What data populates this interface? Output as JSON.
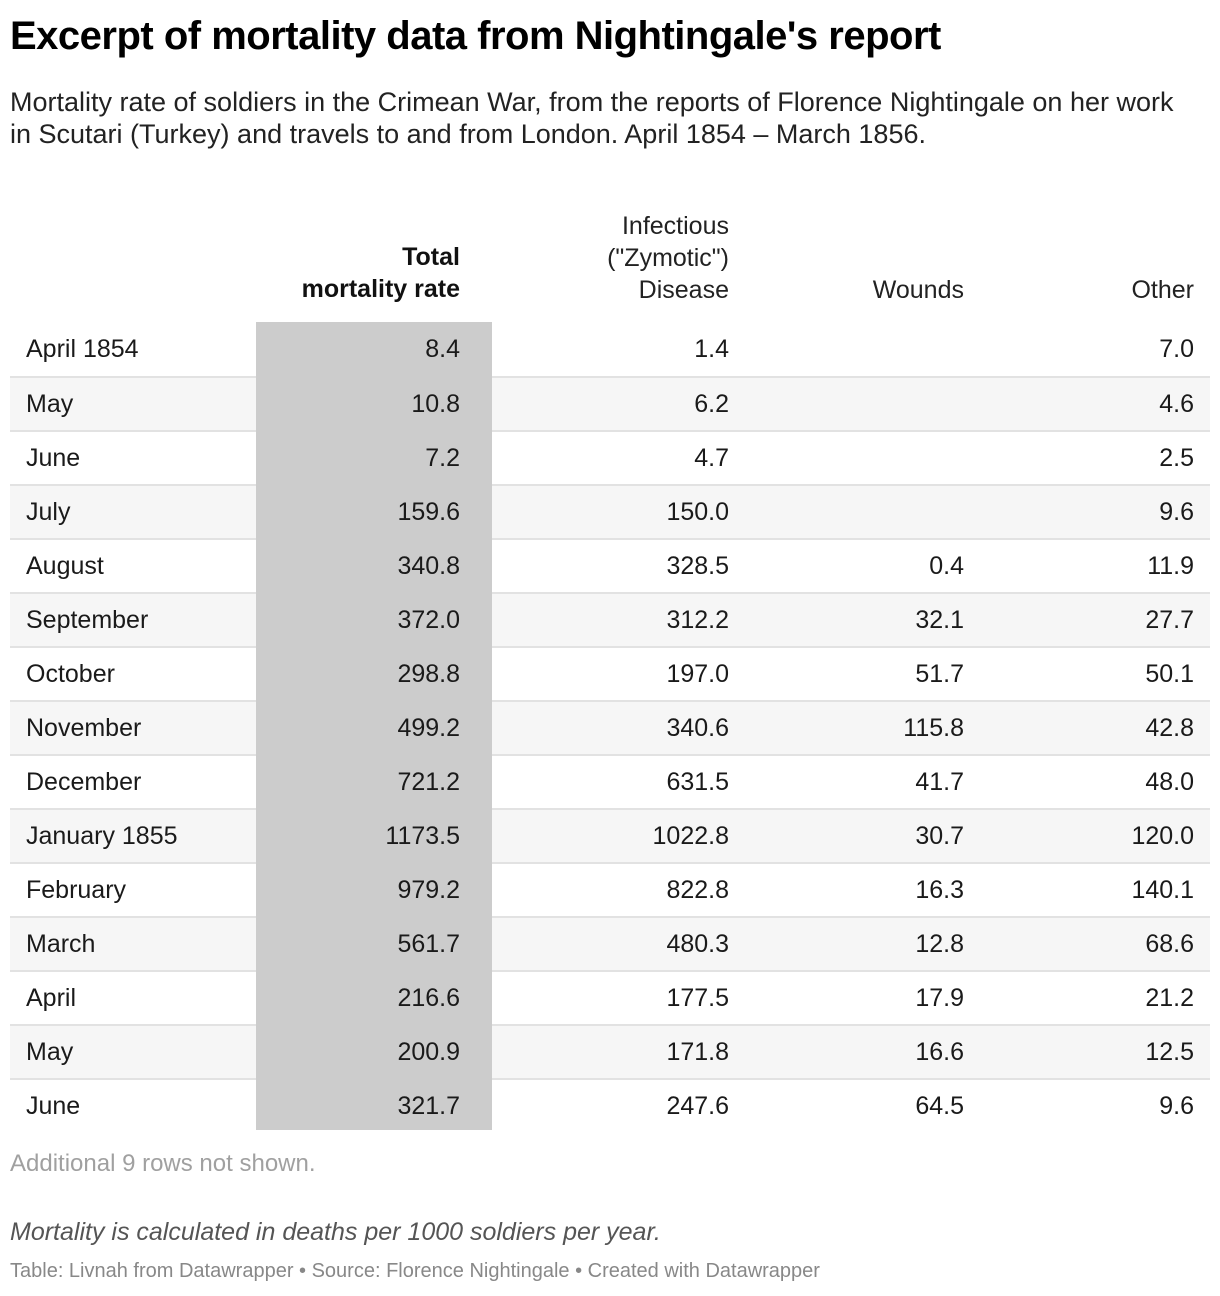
{
  "title": "Excerpt of mortality data from Nightingale's report",
  "subtitle": "Mortality rate of soldiers in the Crimean War, from the reports of Florence Nightingale on her work in Scutari (Turkey) and travels to and from London. April 1854 – March 1856.",
  "header": {
    "total_line1": "Total",
    "total_line2": "mortality rate",
    "zymotic_line1": "Infectious",
    "zymotic_line2": "(\"Zymotic\")",
    "zymotic_line3": "Disease",
    "wounds": "Wounds",
    "other": "Other"
  },
  "chart_data": {
    "type": "table",
    "columns": [
      "",
      "Total mortality rate",
      "Infectious (\"Zymotic\") Disease",
      "Wounds",
      "Other"
    ],
    "highlight_color": "#cccccc",
    "rows": [
      {
        "month": "April 1854",
        "total": "8.4",
        "zymotic": "1.4",
        "wounds": "",
        "other": "7.0"
      },
      {
        "month": "May",
        "total": "10.8",
        "zymotic": "6.2",
        "wounds": "",
        "other": "4.6"
      },
      {
        "month": "June",
        "total": "7.2",
        "zymotic": "4.7",
        "wounds": "",
        "other": "2.5"
      },
      {
        "month": "July",
        "total": "159.6",
        "zymotic": "150.0",
        "wounds": "",
        "other": "9.6"
      },
      {
        "month": "August",
        "total": "340.8",
        "zymotic": "328.5",
        "wounds": "0.4",
        "other": "11.9"
      },
      {
        "month": "September",
        "total": "372.0",
        "zymotic": "312.2",
        "wounds": "32.1",
        "other": "27.7"
      },
      {
        "month": "October",
        "total": "298.8",
        "zymotic": "197.0",
        "wounds": "51.7",
        "other": "50.1"
      },
      {
        "month": "November",
        "total": "499.2",
        "zymotic": "340.6",
        "wounds": "115.8",
        "other": "42.8"
      },
      {
        "month": "December",
        "total": "721.2",
        "zymotic": "631.5",
        "wounds": "41.7",
        "other": "48.0"
      },
      {
        "month": "January 1855",
        "total": "1173.5",
        "zymotic": "1022.8",
        "wounds": "30.7",
        "other": "120.0"
      },
      {
        "month": "February",
        "total": "979.2",
        "zymotic": "822.8",
        "wounds": "16.3",
        "other": "140.1"
      },
      {
        "month": "March",
        "total": "561.7",
        "zymotic": "480.3",
        "wounds": "12.8",
        "other": "68.6"
      },
      {
        "month": "April",
        "total": "216.6",
        "zymotic": "177.5",
        "wounds": "17.9",
        "other": "21.2"
      },
      {
        "month": "May",
        "total": "200.9",
        "zymotic": "171.8",
        "wounds": "16.6",
        "other": "12.5"
      },
      {
        "month": "June",
        "total": "321.7",
        "zymotic": "247.6",
        "wounds": "64.5",
        "other": "9.6"
      }
    ]
  },
  "rows_note": "Additional 9 rows not shown.",
  "notes": "Mortality is calculated in deaths per 1000 soldiers per year.",
  "footer": "Table: Livnah from Datawrapper • Source: Florence Nightingale • Created with Datawrapper"
}
